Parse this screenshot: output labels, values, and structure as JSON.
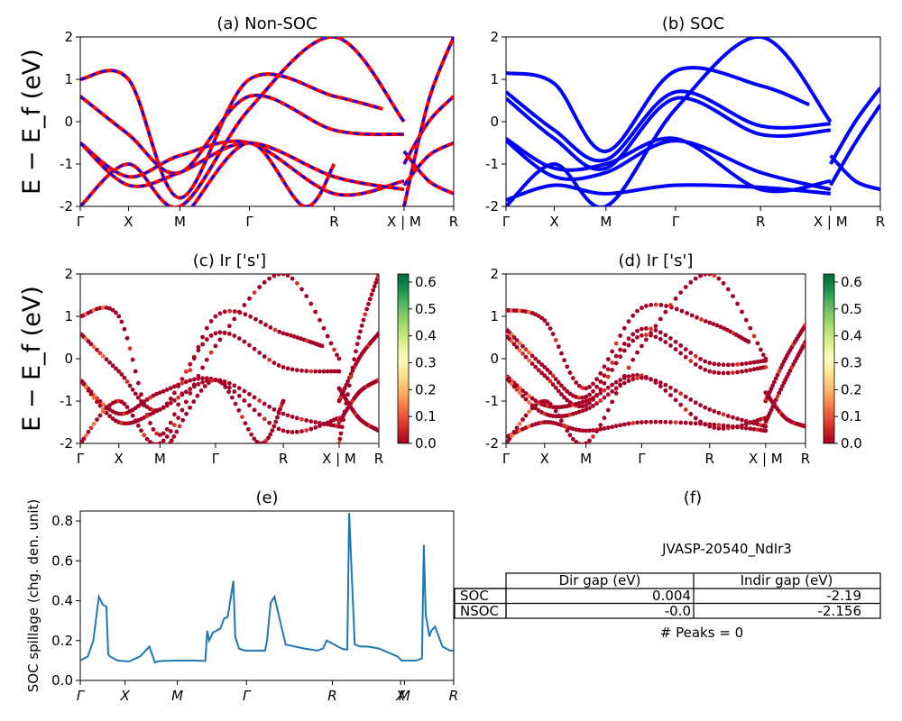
{
  "colors": {
    "red": "#ff0000",
    "blue": "#0000ff",
    "line": "#1f77b4"
  },
  "colorbar_colors": [
    "#a50026",
    "#d73027",
    "#f46d43",
    "#fdae61",
    "#fee08b",
    "#ffffbf",
    "#d9ef8b",
    "#a6d96a",
    "#66bd63",
    "#1a9850",
    "#006837"
  ],
  "ylabel_bands": "E − E_f (eV)",
  "chart_data": [
    {
      "id": "a",
      "type": "line",
      "title": "(a) Non-SOC",
      "ylim": [
        -2,
        2
      ],
      "yticks": [
        "-2",
        "-1",
        "0",
        "1",
        "2"
      ],
      "xticks": [
        "Γ",
        "X",
        "M",
        "Γ",
        "R",
        "X | M",
        "R"
      ],
      "xtick_pos": [
        0,
        0.129,
        0.267,
        0.453,
        0.68,
        0.867,
        1.0
      ],
      "note": "red solid bands overlaid with blue dashed bands (same data)",
      "series": [
        {
          "x": [
            0.0,
            0.129,
            0.267,
            0.453,
            0.68,
            0.81
          ],
          "y": [
            1.0,
            1.0,
            -1.8,
            1.0,
            0.6,
            0.3
          ]
        },
        {
          "x": [
            0.0,
            0.129,
            0.267,
            0.453,
            0.68,
            0.867
          ],
          "y": [
            0.6,
            -0.3,
            -1.2,
            0.6,
            -0.2,
            -0.3
          ]
        },
        {
          "x": [
            0.0,
            0.129,
            0.267,
            0.453,
            0.68,
            0.867
          ],
          "y": [
            -0.5,
            -1.3,
            -0.8,
            -0.5,
            -1.7,
            -1.4
          ]
        },
        {
          "x": [
            0.0,
            0.129,
            0.267,
            0.453,
            0.68,
            0.867
          ],
          "y": [
            -0.5,
            -1.5,
            -1.2,
            -0.5,
            -1.3,
            -1.6
          ]
        },
        {
          "x": [
            0.0,
            0.129,
            0.267,
            0.453,
            0.68,
            0.867
          ],
          "y": [
            -2.0,
            -1.0,
            -2.0,
            0.3,
            2.0,
            0.0
          ]
        },
        {
          "x": [
            0.3,
            0.453,
            0.6,
            0.68
          ],
          "y": [
            -2.0,
            -0.5,
            -2.0,
            -1.0
          ]
        },
        {
          "x": [
            0.867,
            0.933,
            1.0
          ],
          "y": [
            -0.7,
            -1.4,
            -1.7
          ]
        },
        {
          "x": [
            0.867,
            0.933,
            1.0
          ],
          "y": [
            -1.0,
            0.0,
            0.6
          ]
        },
        {
          "x": [
            0.867,
            0.933,
            1.0
          ],
          "y": [
            -1.5,
            -0.8,
            -0.5
          ]
        },
        {
          "x": [
            0.867,
            0.933,
            1.0
          ],
          "y": [
            -2.0,
            0.5,
            2.0
          ]
        }
      ]
    },
    {
      "id": "b",
      "type": "line",
      "title": "(b) SOC",
      "ylim": [
        -2,
        2
      ],
      "yticks": [
        "-2",
        "-1",
        "0",
        "1",
        "2"
      ],
      "xticks": [
        "Γ",
        "X",
        "M",
        "Γ",
        "R",
        "X | M",
        "R"
      ],
      "xtick_pos": [
        0,
        0.129,
        0.267,
        0.453,
        0.68,
        0.867,
        1.0
      ],
      "series": [
        {
          "x": [
            0.0,
            0.129,
            0.267,
            0.453,
            0.68,
            0.81
          ],
          "y": [
            1.15,
            0.9,
            -0.7,
            1.2,
            0.85,
            0.4
          ]
        },
        {
          "x": [
            0.0,
            0.129,
            0.267,
            0.453,
            0.68,
            0.867
          ],
          "y": [
            0.7,
            -0.2,
            -0.9,
            0.7,
            -0.1,
            -0.05
          ]
        },
        {
          "x": [
            0.0,
            0.129,
            0.267,
            0.453,
            0.68,
            0.867
          ],
          "y": [
            0.55,
            -0.4,
            -1.1,
            0.55,
            -0.3,
            -0.2
          ]
        },
        {
          "x": [
            0.0,
            0.129,
            0.267,
            0.453,
            0.68,
            0.867
          ],
          "y": [
            -0.4,
            -1.1,
            -1.0,
            -0.4,
            -1.6,
            -1.4
          ]
        },
        {
          "x": [
            0.0,
            0.129,
            0.267,
            0.453,
            0.68,
            0.867
          ],
          "y": [
            -0.45,
            -1.3,
            -1.2,
            -0.45,
            -1.2,
            -1.6
          ]
        },
        {
          "x": [
            0.0,
            0.129,
            0.267,
            0.453,
            0.68,
            0.867
          ],
          "y": [
            -1.85,
            -1.5,
            -1.7,
            -1.5,
            -1.55,
            -1.7
          ]
        },
        {
          "x": [
            0.0,
            0.129,
            0.267,
            0.453,
            0.68,
            0.867
          ],
          "y": [
            -2.0,
            -1.0,
            -2.0,
            0.3,
            2.0,
            0.0
          ]
        },
        {
          "x": [
            0.867,
            0.933,
            1.0
          ],
          "y": [
            -0.8,
            -1.4,
            -1.6
          ]
        },
        {
          "x": [
            0.867,
            0.933,
            1.0
          ],
          "y": [
            -1.0,
            0.0,
            0.8
          ]
        },
        {
          "x": [
            0.867,
            0.933,
            1.0
          ],
          "y": [
            -1.5,
            -0.5,
            0.4
          ]
        }
      ]
    },
    {
      "id": "c",
      "type": "scatter",
      "title": "(c)  Ir ['s']",
      "ylim": [
        -2,
        2
      ],
      "yticks": [
        "-2",
        "-1",
        "0",
        "1",
        "2"
      ],
      "xticks": [
        "Γ",
        "X",
        "M",
        "Γ",
        "R",
        "X | M",
        "R"
      ],
      "xtick_pos": [
        0,
        0.129,
        0.267,
        0.453,
        0.68,
        0.867,
        1.0
      ],
      "colorbar": {
        "range": [
          0.0,
          0.63
        ],
        "ticks": [
          "0.0",
          "0.1",
          "0.2",
          "0.3",
          "0.4",
          "0.5",
          "0.6"
        ]
      },
      "projection_value_typical": 0.02
    },
    {
      "id": "d",
      "type": "scatter",
      "title": "(d) Ir ['s']",
      "ylim": [
        -2,
        2
      ],
      "yticks": [
        "-2",
        "-1",
        "0",
        "1",
        "2"
      ],
      "xticks": [
        "Γ",
        "X",
        "M",
        "Γ",
        "R",
        "X | M",
        "R"
      ],
      "xtick_pos": [
        0,
        0.129,
        0.267,
        0.453,
        0.68,
        0.867,
        1.0
      ],
      "colorbar": {
        "range": [
          0.0,
          0.63
        ],
        "ticks": [
          "0.0",
          "0.1",
          "0.2",
          "0.3",
          "0.4",
          "0.5",
          "0.6"
        ]
      },
      "projection_value_typical": 0.02
    },
    {
      "id": "e",
      "type": "line",
      "title": "(e)",
      "ylabel": "SOC spillage (chg. den. unit)",
      "ylim": [
        0,
        0.85
      ],
      "yticks": [
        "0.0",
        "0.2",
        "0.4",
        "0.6",
        "0.8"
      ],
      "ytick_vals": [
        0,
        0.2,
        0.4,
        0.6,
        0.8
      ],
      "xticks": [
        "Γ",
        "X",
        "M",
        "Γ",
        "R",
        "X",
        "M",
        "R"
      ],
      "xtick_pos": [
        0,
        0.12,
        0.26,
        0.445,
        0.675,
        0.858,
        0.868,
        1.0
      ],
      "x": [
        0,
        0.02,
        0.035,
        0.045,
        0.05,
        0.06,
        0.07,
        0.075,
        0.08,
        0.1,
        0.13,
        0.16,
        0.185,
        0.2,
        0.205,
        0.22,
        0.26,
        0.3,
        0.335,
        0.34,
        0.345,
        0.355,
        0.365,
        0.375,
        0.385,
        0.395,
        0.41,
        0.415,
        0.425,
        0.44,
        0.47,
        0.495,
        0.5,
        0.51,
        0.52,
        0.55,
        0.6,
        0.635,
        0.65,
        0.66,
        0.7,
        0.71,
        0.715,
        0.72,
        0.735,
        0.75,
        0.77,
        0.8,
        0.85,
        0.86,
        0.9,
        0.915,
        0.92,
        0.925,
        0.935,
        0.94,
        0.95,
        0.97,
        0.99,
        1.0
      ],
      "values": [
        0.1,
        0.12,
        0.2,
        0.35,
        0.42,
        0.38,
        0.37,
        0.13,
        0.12,
        0.1,
        0.095,
        0.12,
        0.17,
        0.09,
        0.095,
        0.098,
        0.1,
        0.1,
        0.098,
        0.25,
        0.2,
        0.24,
        0.25,
        0.26,
        0.31,
        0.32,
        0.5,
        0.22,
        0.16,
        0.15,
        0.15,
        0.15,
        0.2,
        0.39,
        0.42,
        0.18,
        0.16,
        0.15,
        0.16,
        0.2,
        0.16,
        0.155,
        0.155,
        0.84,
        0.18,
        0.17,
        0.17,
        0.16,
        0.12,
        0.1,
        0.1,
        0.11,
        0.68,
        0.33,
        0.22,
        0.25,
        0.27,
        0.17,
        0.15,
        0.15
      ]
    }
  ],
  "table_panel": {
    "title": "(f)",
    "material": "JVASP-20540_NdIr3",
    "columns": [
      "Dir gap (eV)",
      "Indir gap (eV)"
    ],
    "rows": [
      {
        "label": "SOC",
        "dir": "0.004",
        "indir": "-2.19"
      },
      {
        "label": "NSOC",
        "dir": "-0.0",
        "indir": "-2.156"
      }
    ],
    "peaks": "# Peaks = 0"
  }
}
